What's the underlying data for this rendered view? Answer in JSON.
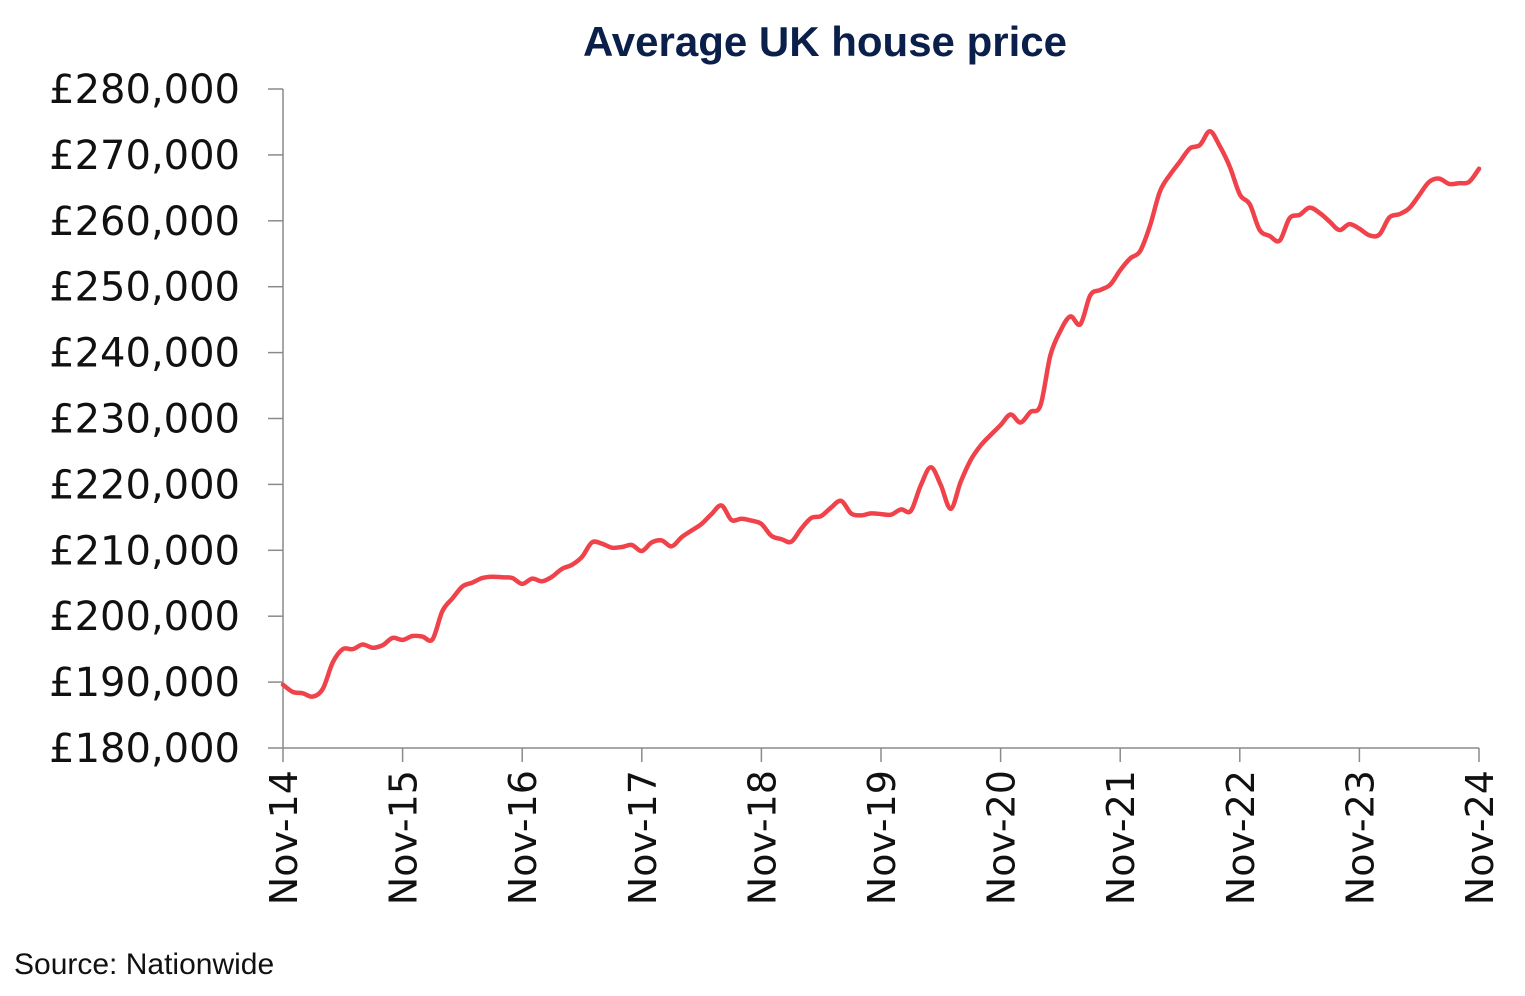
{
  "chart_data": {
    "type": "line",
    "title": "Average UK house price",
    "xlabel": "",
    "ylabel": "",
    "ylim": [
      180000,
      280000
    ],
    "y_ticks": [
      {
        "value": 180000,
        "label": "£180,000"
      },
      {
        "value": 190000,
        "label": "£190,000"
      },
      {
        "value": 200000,
        "label": "£200,000"
      },
      {
        "value": 210000,
        "label": "£210,000"
      },
      {
        "value": 220000,
        "label": "£220,000"
      },
      {
        "value": 230000,
        "label": "£230,000"
      },
      {
        "value": 240000,
        "label": "£240,000"
      },
      {
        "value": 250000,
        "label": "£250,000"
      },
      {
        "value": 260000,
        "label": "£260,000"
      },
      {
        "value": 270000,
        "label": "£270,000"
      },
      {
        "value": 280000,
        "label": "£280,000"
      }
    ],
    "x_ticks": [
      "Nov-14",
      "Nov-15",
      "Nov-16",
      "Nov-17",
      "Nov-18",
      "Nov-19",
      "Nov-20",
      "Nov-21",
      "Nov-22",
      "Nov-23",
      "Nov-24"
    ],
    "grid": false,
    "legend": "none",
    "series": [
      {
        "color": "#f0424a",
        "x": [
          "Nov-14",
          "Dec-14",
          "Jan-15",
          "Feb-15",
          "Mar-15",
          "Apr-15",
          "May-15",
          "Jun-15",
          "Jul-15",
          "Aug-15",
          "Sep-15",
          "Oct-15",
          "Nov-15",
          "Dec-15",
          "Jan-16",
          "Feb-16",
          "Mar-16",
          "Apr-16",
          "May-16",
          "Jun-16",
          "Jul-16",
          "Aug-16",
          "Sep-16",
          "Oct-16",
          "Nov-16",
          "Dec-16",
          "Jan-17",
          "Feb-17",
          "Mar-17",
          "Apr-17",
          "May-17",
          "Jun-17",
          "Jul-17",
          "Aug-17",
          "Sep-17",
          "Oct-17",
          "Nov-17",
          "Dec-17",
          "Jan-18",
          "Feb-18",
          "Mar-18",
          "Apr-18",
          "May-18",
          "Jun-18",
          "Jul-18",
          "Aug-18",
          "Sep-18",
          "Oct-18",
          "Nov-18",
          "Dec-18",
          "Jan-19",
          "Feb-19",
          "Mar-19",
          "Apr-19",
          "May-19",
          "Jun-19",
          "Jul-19",
          "Aug-19",
          "Sep-19",
          "Oct-19",
          "Nov-19",
          "Dec-19",
          "Jan-20",
          "Feb-20",
          "Mar-20",
          "Apr-20",
          "May-20",
          "Jun-20",
          "Jul-20",
          "Aug-20",
          "Sep-20",
          "Oct-20",
          "Nov-20",
          "Dec-20",
          "Jan-21",
          "Feb-21",
          "Mar-21",
          "Apr-21",
          "May-21",
          "Jun-21",
          "Jul-21",
          "Aug-21",
          "Sep-21",
          "Oct-21",
          "Nov-21",
          "Dec-21",
          "Jan-22",
          "Feb-22",
          "Mar-22",
          "Apr-22",
          "May-22",
          "Jun-22",
          "Jul-22",
          "Aug-22",
          "Sep-22",
          "Oct-22",
          "Nov-22",
          "Dec-22",
          "Jan-23",
          "Feb-23",
          "Mar-23",
          "Apr-23",
          "May-23",
          "Jun-23",
          "Jul-23",
          "Aug-23",
          "Sep-23",
          "Oct-23",
          "Nov-23",
          "Dec-23",
          "Jan-24",
          "Feb-24",
          "Mar-24",
          "Apr-24",
          "May-24",
          "Jun-24",
          "Jul-24",
          "Aug-24",
          "Sep-24",
          "Oct-24",
          "Nov-24"
        ],
        "values": [
          189600,
          188500,
          188300,
          187800,
          189000,
          193000,
          195000,
          195000,
          195700,
          195200,
          195600,
          196700,
          196400,
          197000,
          196900,
          196500,
          200800,
          202700,
          204500,
          205100,
          205800,
          206000,
          205900,
          205800,
          204900,
          205700,
          205300,
          206000,
          207200,
          207800,
          209000,
          211200,
          211000,
          210400,
          210500,
          210800,
          209900,
          211200,
          211500,
          210600,
          212000,
          213000,
          214000,
          215500,
          216800,
          214600,
          214800,
          214500,
          214000,
          212200,
          211700,
          211300,
          213300,
          214900,
          215200,
          216500,
          217500,
          215600,
          215300,
          215600,
          215500,
          215400,
          216200,
          216000,
          219900,
          222600,
          219900,
          216300,
          220400,
          223700,
          225900,
          227500,
          229000,
          230600,
          229400,
          231000,
          232000,
          239600,
          243300,
          245500,
          244300,
          248700,
          249500,
          250300,
          252500,
          254300,
          255400,
          259300,
          264500,
          267000,
          269000,
          271000,
          271500,
          273600,
          271300,
          268200,
          264000,
          262500,
          258600,
          257700,
          257000,
          260400,
          260900,
          262000,
          261200,
          259900,
          258600,
          259500,
          258800,
          257800,
          257900,
          260500,
          261000,
          261900,
          263900,
          265900,
          266400,
          265600,
          265700,
          265900,
          267900
        ]
      }
    ]
  },
  "source_note": "Source: Nationwide"
}
